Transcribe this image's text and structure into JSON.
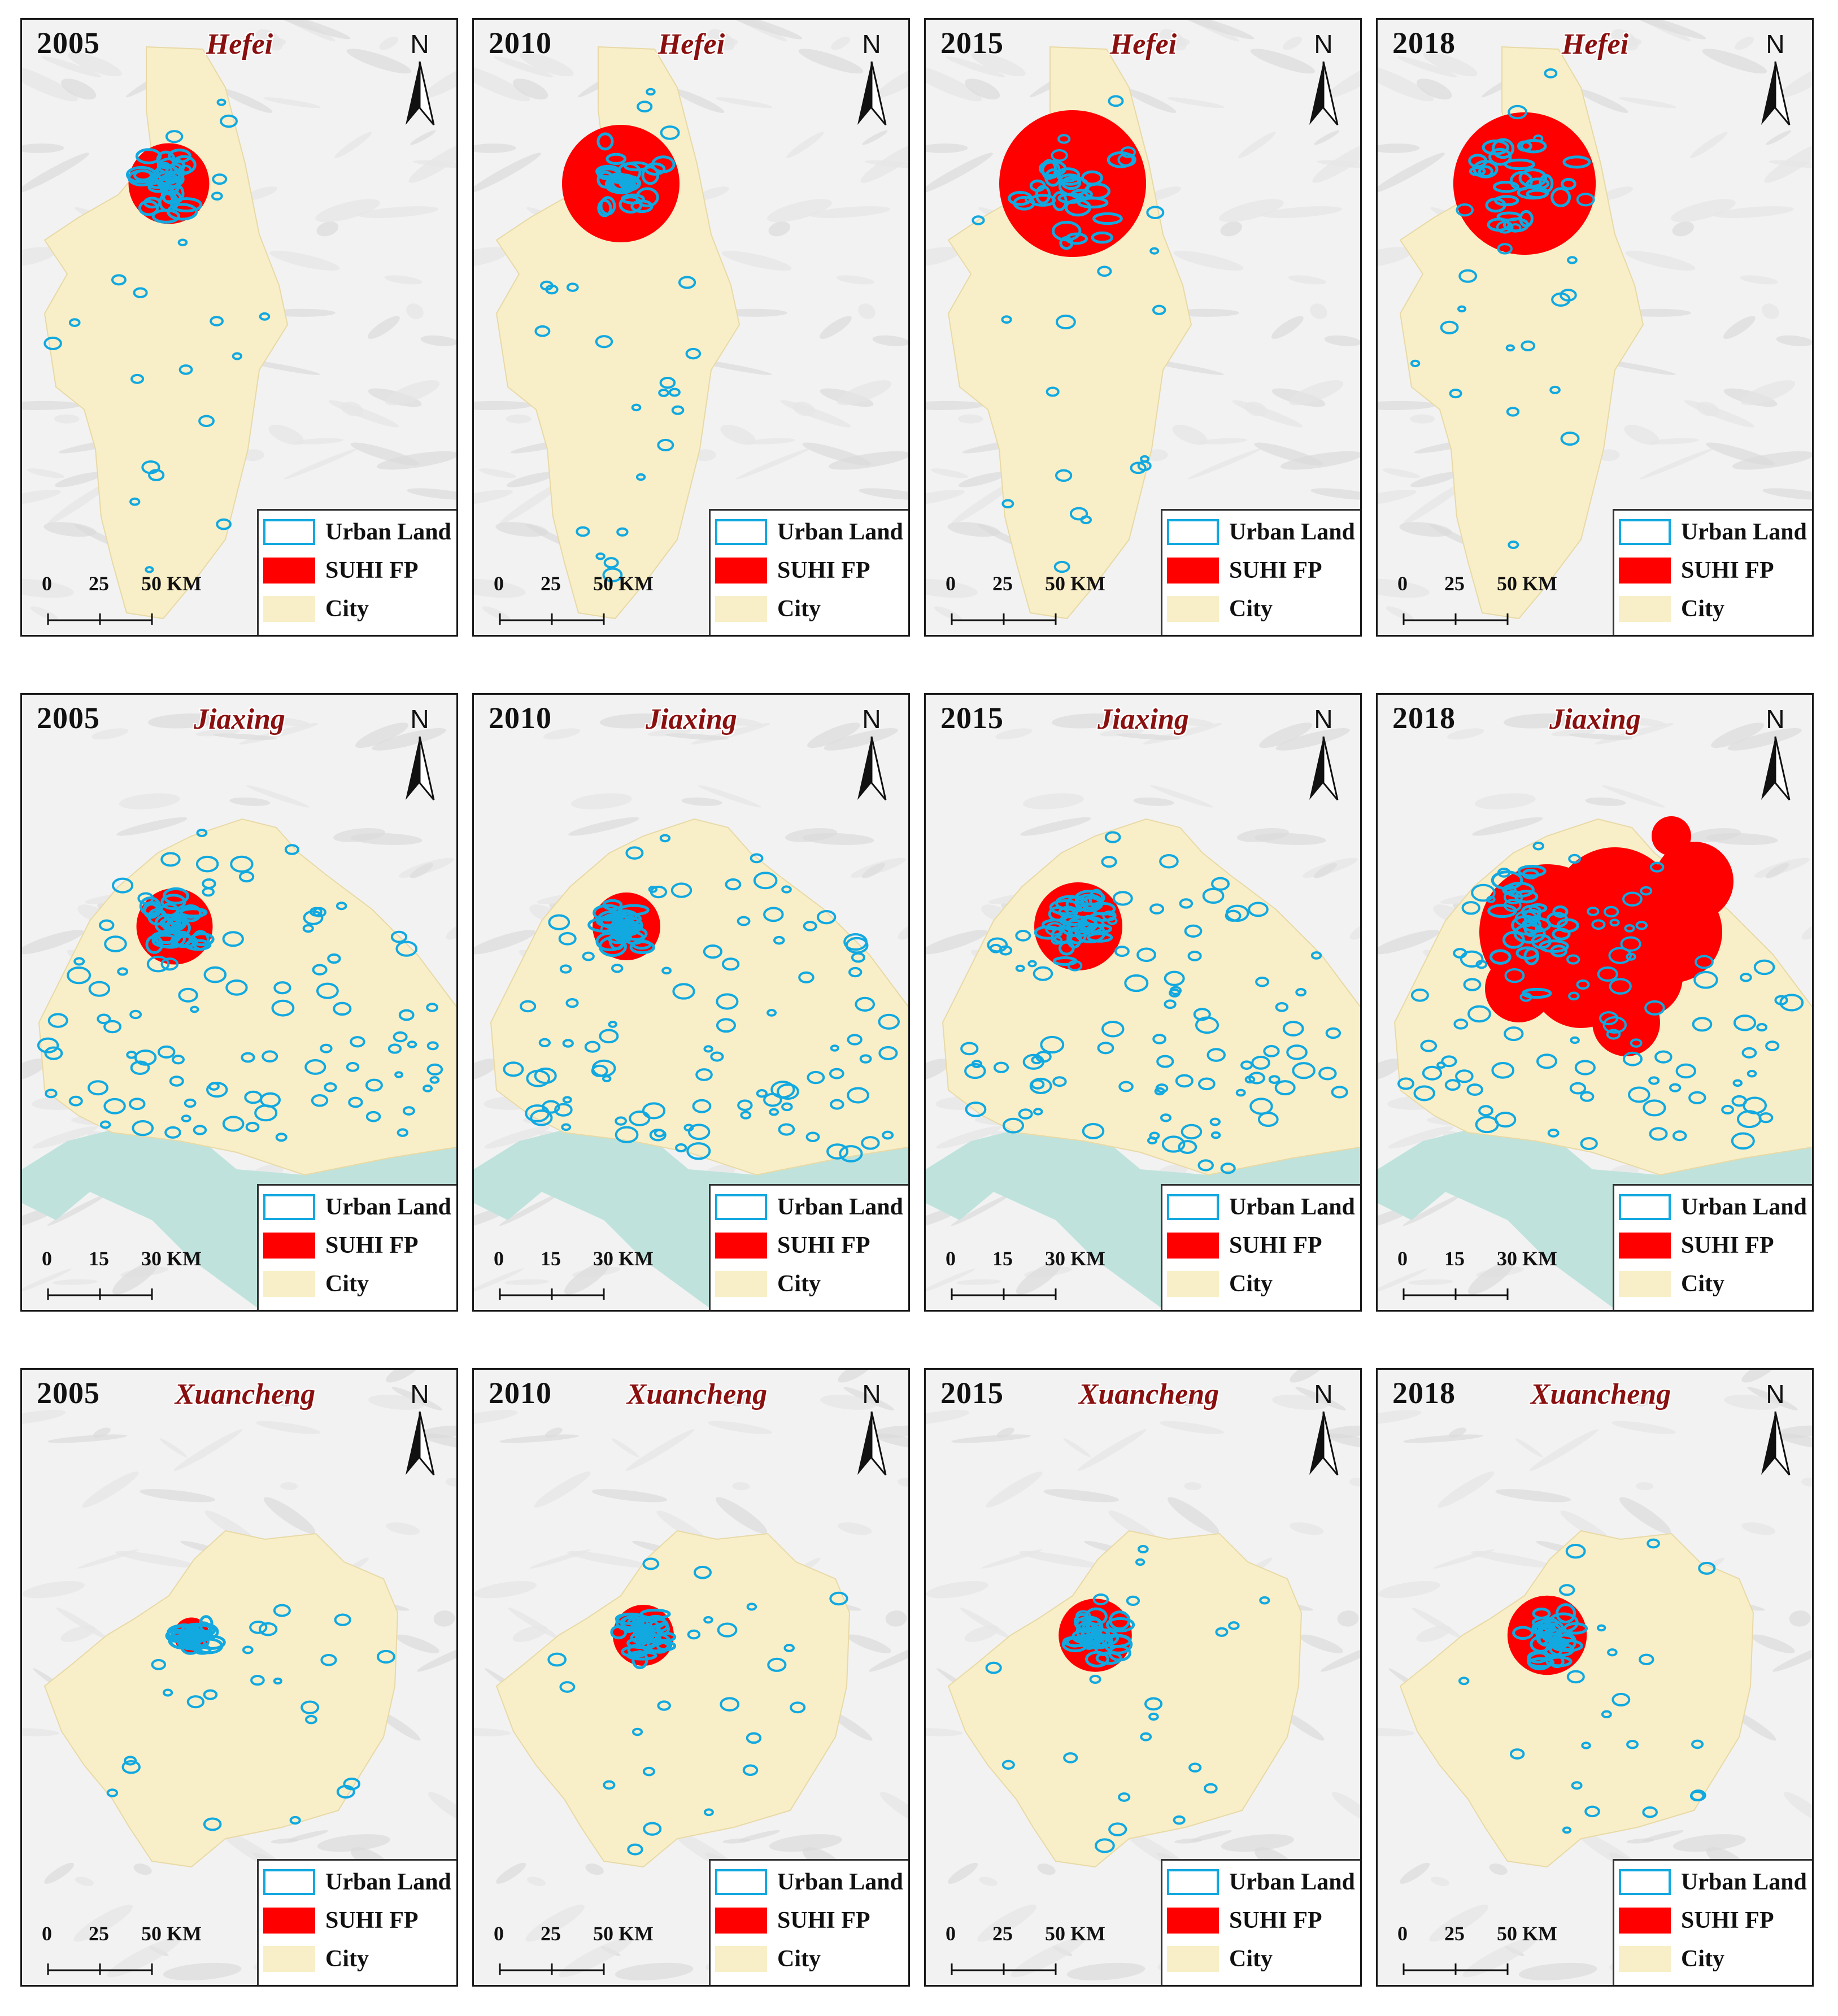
{
  "colors": {
    "urban_land": "#12a8e0",
    "suhi_fp": "#ff0000",
    "city": "#f8efc8",
    "water": "#bfe3dc",
    "terrain": "#ececec",
    "city_name": "#8a1010"
  },
  "north_label": "N",
  "legend": {
    "urban_land": "Urban Land",
    "suhi_fp": "SUHI FP",
    "city": "City"
  },
  "scales": {
    "km50": {
      "t0": "0",
      "t1": "25",
      "t2": "50 KM"
    },
    "km30": {
      "t0": "0",
      "t1": "15",
      "t2": "30 KM"
    }
  },
  "rows": [
    {
      "city": "Hefei",
      "years": [
        "2005",
        "2010",
        "2015",
        "2018"
      ],
      "suhi_fp_relative_extent": [
        0.55,
        0.8,
        1.0,
        0.97
      ]
    },
    {
      "city": "Jiaxing",
      "years": [
        "2005",
        "2010",
        "2015",
        "2018"
      ],
      "suhi_fp_relative_extent": [
        0.45,
        0.4,
        0.52,
        1.0
      ]
    },
    {
      "city": "Xuancheng",
      "years": [
        "2005",
        "2010",
        "2015",
        "2018"
      ],
      "suhi_fp_relative_extent": [
        0.35,
        0.6,
        0.72,
        0.78
      ]
    }
  ]
}
